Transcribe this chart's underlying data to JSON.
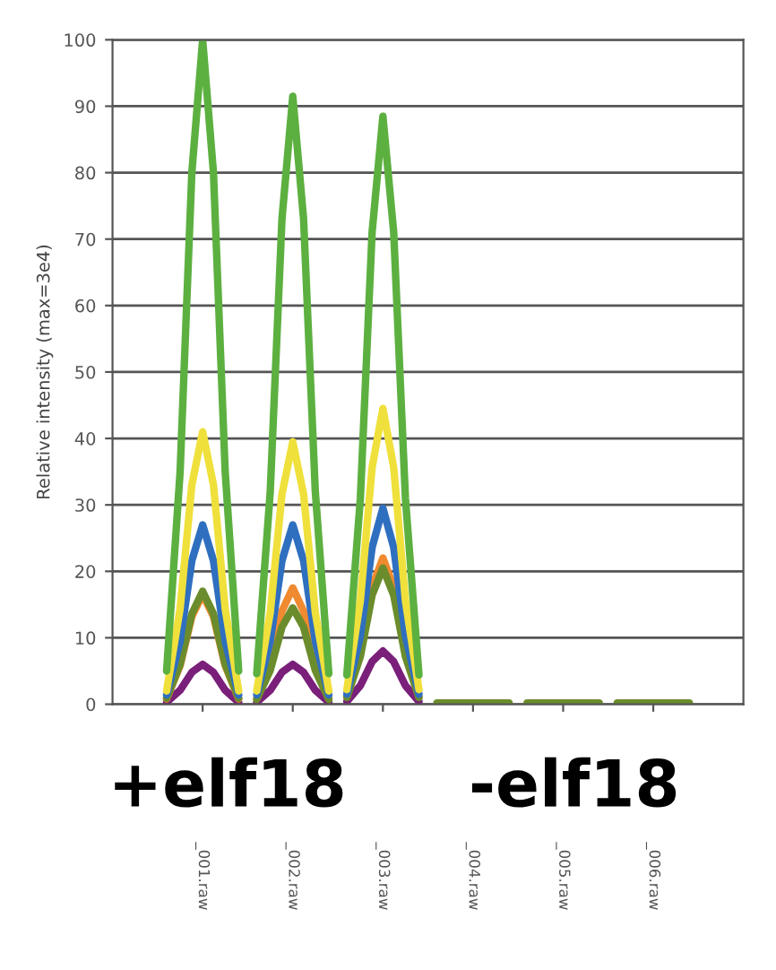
{
  "chart_data": {
    "type": "line",
    "ylabel": "Relative intensity (max=3e4)",
    "x": [
      0.6,
      0.75,
      0.88,
      1,
      1.12,
      1.25,
      1.4,
      1.5,
      1.6,
      1.75,
      1.88,
      2,
      2.12,
      2.25,
      2.4,
      2.5,
      2.6,
      2.75,
      2.88,
      3,
      3.12,
      3.25,
      3.4,
      3.5,
      3.6,
      3.75,
      3.88,
      4,
      4.12,
      4.25,
      4.4,
      4.5,
      4.6,
      4.75,
      4.88,
      5,
      5.12,
      5.25,
      5.4,
      5.5,
      5.6,
      5.75,
      5.88,
      6,
      6.12,
      6.25,
      6.4
    ],
    "series": [
      {
        "color": "#7a1f7a",
        "values": [
          0.3,
          2.1,
          4.8,
          6,
          4.8,
          2.1,
          0.3,
          null,
          0.3,
          2.1,
          4.8,
          6,
          4.8,
          2.1,
          0.3,
          null,
          0.4,
          2.8,
          6.4,
          8,
          6.4,
          2.8,
          0.4,
          null,
          null,
          null,
          null,
          null,
          null,
          null,
          null,
          null,
          null,
          null,
          null,
          null,
          null,
          null,
          null,
          null,
          null,
          null,
          null,
          null,
          null,
          null,
          null
        ]
      },
      {
        "color": "#f08a30",
        "values": [
          0.8,
          5.8,
          13.2,
          16.5,
          13.2,
          5.8,
          0.8,
          null,
          0.9,
          6.1,
          14,
          17.5,
          14,
          6.1,
          0.9,
          null,
          1.1,
          7.7,
          17.6,
          22,
          17.6,
          7.7,
          1.1,
          null,
          null,
          null,
          null,
          null,
          null,
          null,
          null,
          null,
          null,
          null,
          null,
          null,
          null,
          null,
          null,
          null,
          null,
          null,
          null,
          null,
          null,
          null,
          null
        ]
      },
      {
        "color": "#6b8c2c",
        "values": [
          0.9,
          6,
          13.6,
          17,
          13.6,
          6,
          0.9,
          null,
          0.7,
          5.1,
          11.6,
          14.5,
          11.6,
          5.1,
          0.7,
          null,
          1,
          7.2,
          16.4,
          20.5,
          16.4,
          7.2,
          1,
          null,
          0.2,
          0.2,
          0.2,
          0.2,
          0.2,
          0.2,
          0.2,
          null,
          0.2,
          0.2,
          0.2,
          0.2,
          0.2,
          0.2,
          0.2,
          null,
          0.2,
          0.2,
          0.2,
          0.2,
          0.2,
          0.2,
          0.2
        ]
      },
      {
        "color": "#2f6fc0",
        "values": [
          1.4,
          9.5,
          21.6,
          27,
          21.6,
          9.5,
          1.4,
          null,
          1.4,
          9.5,
          21.6,
          27,
          21.6,
          9.5,
          1.4,
          null,
          1.5,
          10.3,
          23.6,
          29.5,
          23.6,
          10.3,
          1.5,
          null,
          null,
          null,
          null,
          null,
          null,
          null,
          null,
          null,
          null,
          null,
          null,
          null,
          null,
          null,
          null,
          null,
          null,
          null,
          null,
          null,
          null,
          null,
          null
        ]
      },
      {
        "color": "#f0e03c",
        "values": [
          2,
          14.4,
          33,
          41,
          33,
          14.4,
          2,
          null,
          2,
          13.8,
          31.6,
          39.5,
          31.6,
          13.8,
          2,
          null,
          2.2,
          15.6,
          35.6,
          44.5,
          35.6,
          15.6,
          2.2,
          null,
          null,
          null,
          null,
          null,
          null,
          null,
          null,
          null,
          null,
          null,
          null,
          null,
          null,
          null,
          null,
          null,
          null,
          null,
          null,
          null,
          null,
          null,
          null
        ]
      },
      {
        "color": "#5cb040",
        "values": [
          5,
          35,
          80,
          100,
          80,
          35,
          5,
          null,
          4.6,
          32,
          73,
          91.5,
          73,
          32,
          4.6,
          null,
          4.4,
          31,
          71,
          88.5,
          71,
          31,
          4.4,
          null,
          null,
          null,
          null,
          null,
          null,
          null,
          null,
          null,
          null,
          null,
          null,
          null,
          null,
          null,
          null,
          null,
          null,
          null,
          null,
          null,
          null,
          null,
          null
        ]
      }
    ],
    "xlim": [
      0,
      7
    ],
    "xticks": [
      {
        "value": 1,
        "label": "_001.raw"
      },
      {
        "value": 2,
        "label": "_002.raw"
      },
      {
        "value": 3,
        "label": "_003.raw"
      },
      {
        "value": 4,
        "label": "_004.raw"
      },
      {
        "value": 5,
        "label": "_005.raw"
      },
      {
        "value": 6,
        "label": "_006.raw"
      }
    ],
    "ylim": [
      0,
      100
    ],
    "yticks": [
      0,
      10,
      20,
      30,
      40,
      50,
      60,
      70,
      80,
      90,
      100
    ],
    "grid": "y",
    "marker": "none",
    "line_style": "solid",
    "annotations": [
      "+elf18",
      "-elf18"
    ]
  }
}
